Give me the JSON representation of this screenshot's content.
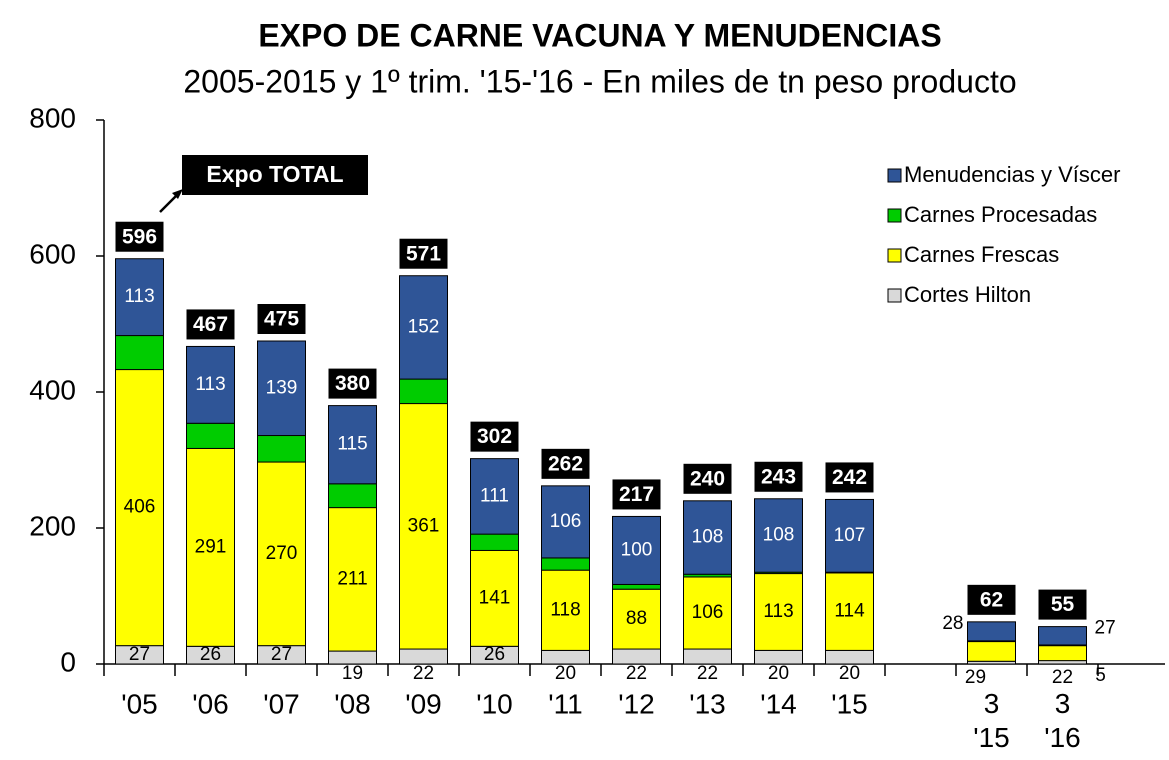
{
  "chart_data": {
    "type": "stacked-bar",
    "title": "EXPO DE CARNE VACUNA Y MENUDENCIAS",
    "subtitle": "2005-2015 y 1º trim. '15-'16 - En miles de tn peso producto",
    "annotation": "Expo TOTAL",
    "categories": [
      "'05",
      "'06",
      "'07",
      "'08",
      "'09",
      "'10",
      "'11",
      "'12",
      "'13",
      "'14",
      "'15",
      null,
      "3 '15",
      "3 '16"
    ],
    "totals": [
      596,
      467,
      475,
      380,
      571,
      302,
      262,
      217,
      240,
      243,
      242,
      null,
      62,
      55
    ],
    "series": [
      {
        "name": "Cortes Hilton",
        "color": "#d9d9d9",
        "label_color": "#000000",
        "show_labels": true,
        "values": [
          27,
          26,
          27,
          19,
          22,
          26,
          20,
          22,
          22,
          20,
          20,
          null,
          4,
          5
        ],
        "value_labels": [
          "27",
          "26",
          "27",
          "19",
          "22",
          "26",
          "20",
          "22",
          "22",
          "20",
          "20",
          null,
          null,
          "5"
        ]
      },
      {
        "name": "Carnes Frescas",
        "color": "#ffff00",
        "label_color": "#000000",
        "show_labels": true,
        "values": [
          406,
          291,
          270,
          211,
          361,
          141,
          118,
          88,
          106,
          113,
          114,
          null,
          29,
          22
        ]
      },
      {
        "name": "Carnes Procesadas",
        "color": "#00cc00",
        "label_color": "#000000",
        "show_labels": false,
        "values": [
          50,
          37,
          39,
          35,
          36,
          24,
          18,
          7,
          4,
          2,
          1,
          null,
          1,
          1
        ]
      },
      {
        "name": "Menudencias y Víscer",
        "color": "#2f5597",
        "label_color": "#ffffff",
        "show_labels": true,
        "values": [
          113,
          113,
          139,
          115,
          152,
          111,
          106,
          100,
          108,
          108,
          107,
          null,
          28,
          27
        ]
      }
    ],
    "ylim": [
      0,
      800
    ],
    "yticks": [
      0,
      200,
      400,
      600,
      800
    ],
    "legend": "top-right"
  }
}
